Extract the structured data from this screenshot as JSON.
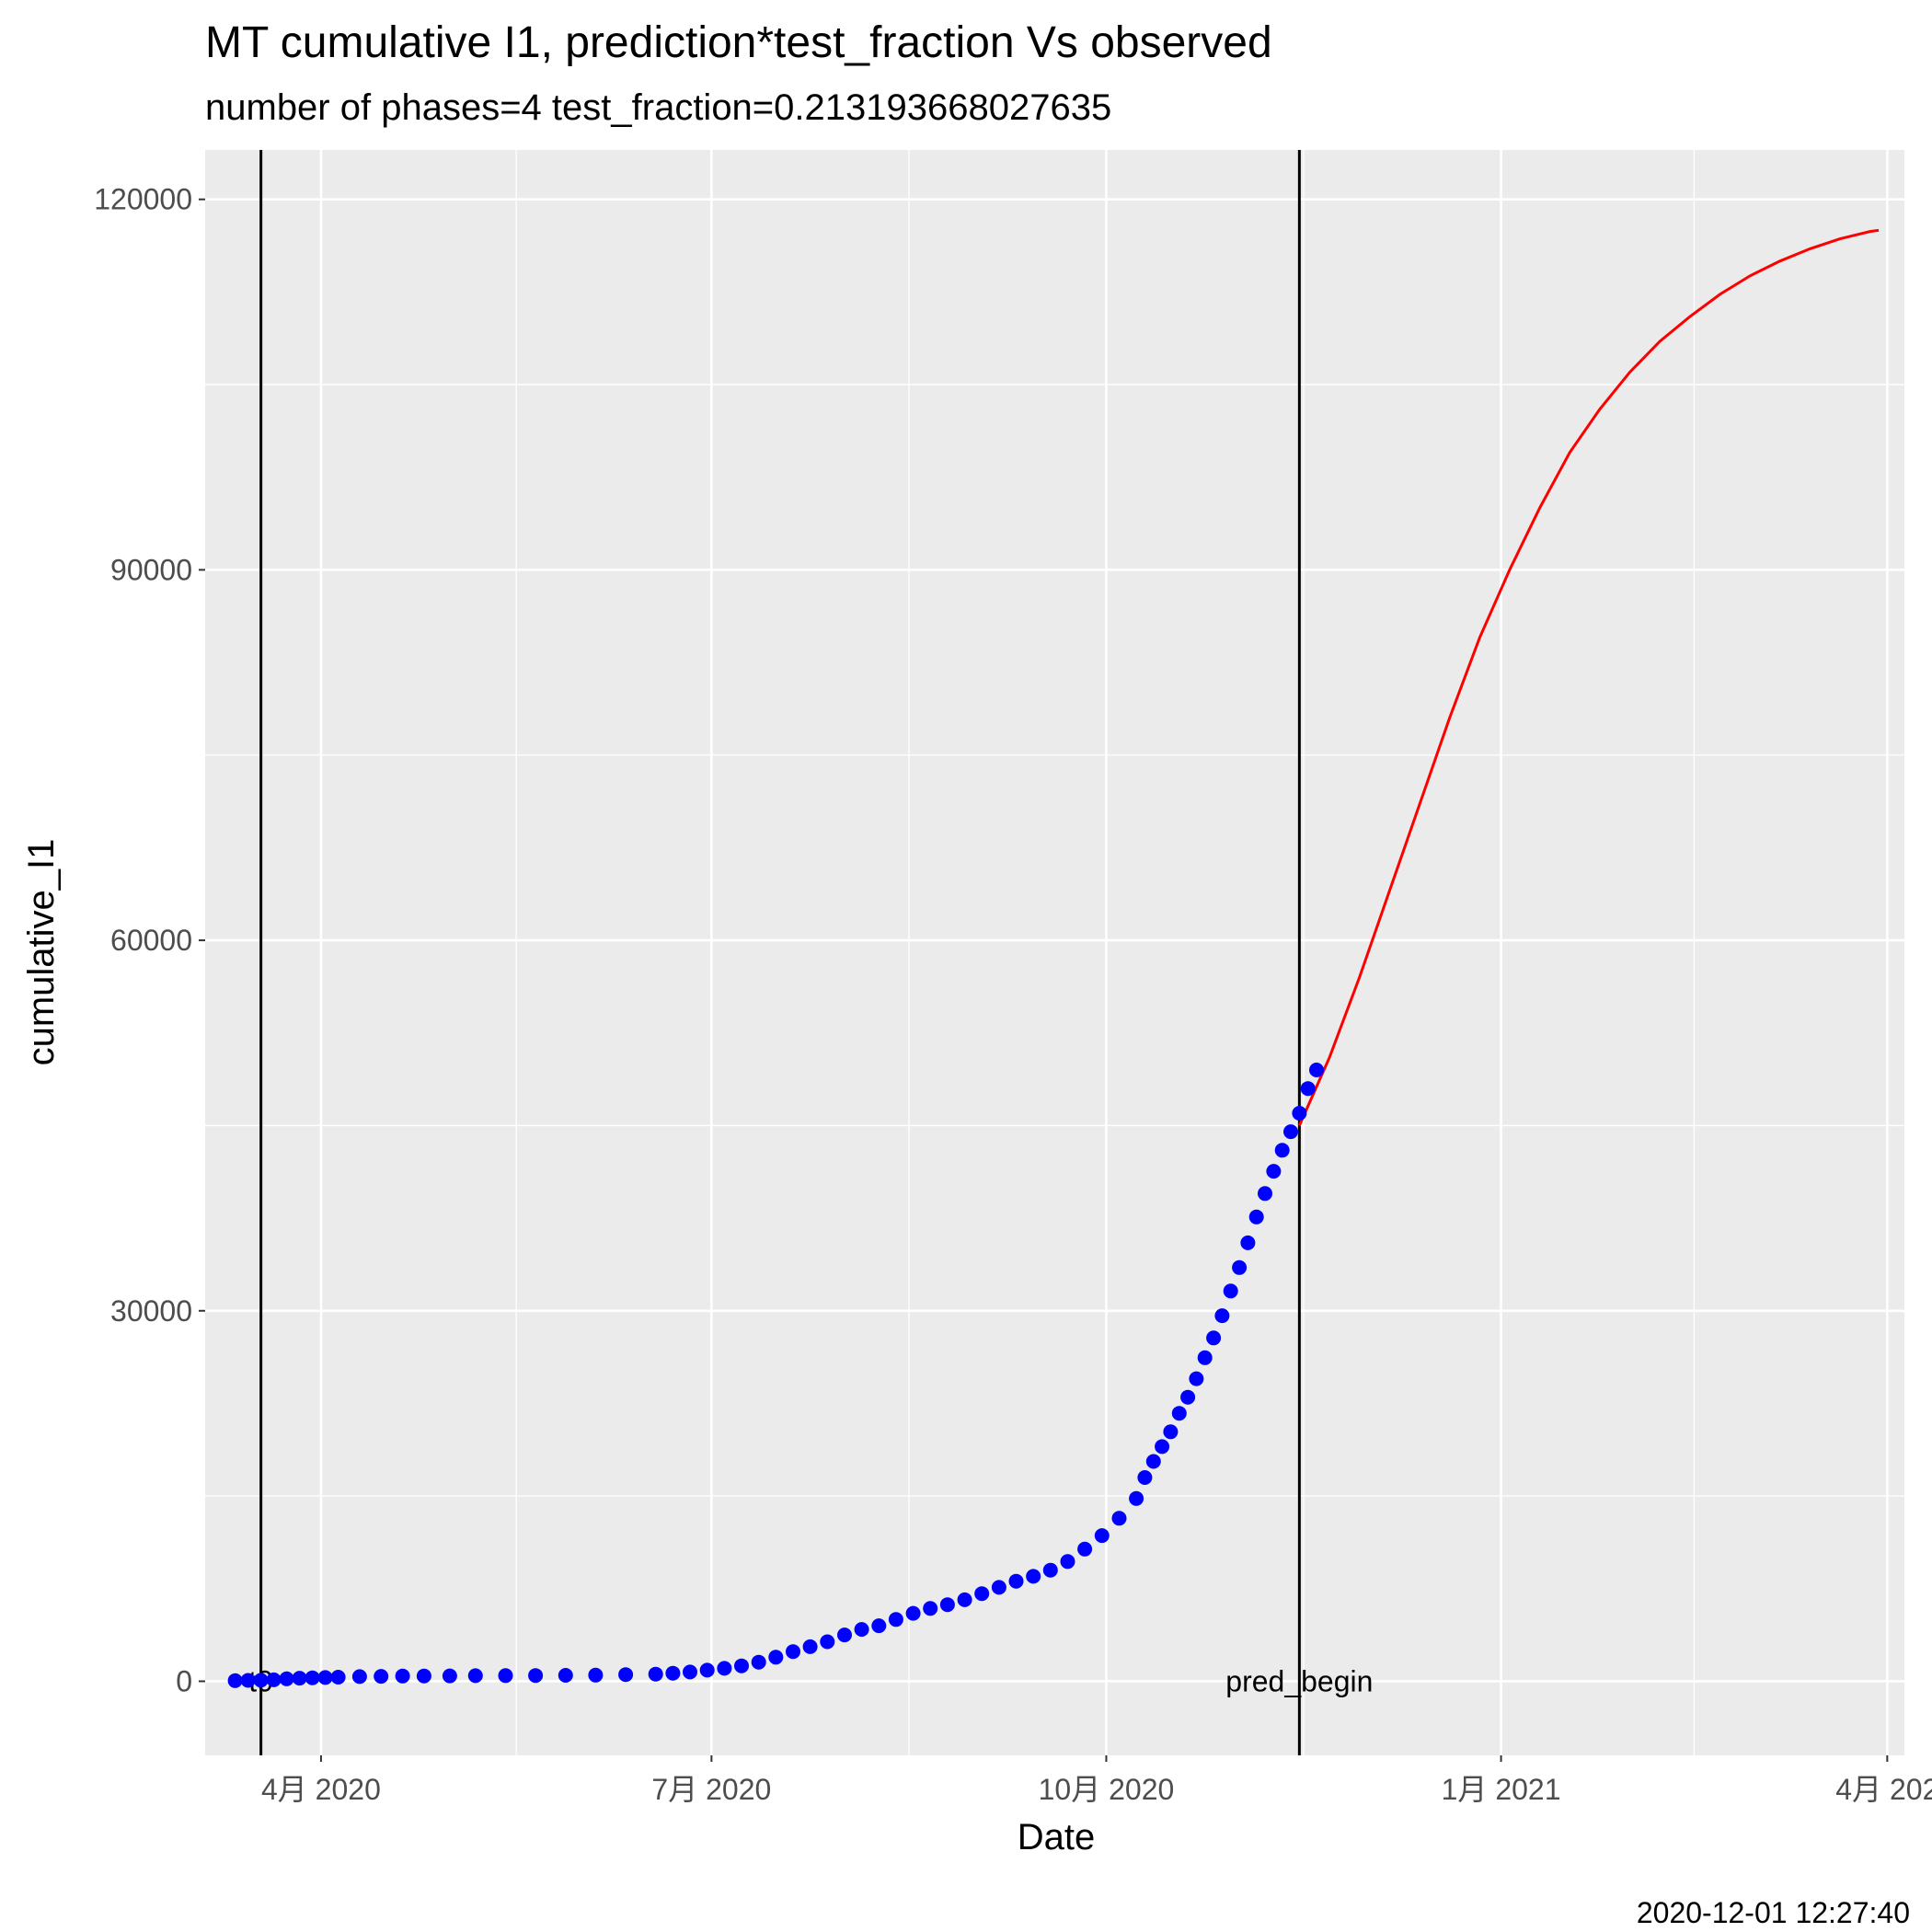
{
  "chart_data": {
    "type": "line",
    "title": "MT cumulative I1,  prediction*test_fraction Vs observed",
    "subtitle": "number of phases=4   test_fraction=0.213193668027635",
    "xlabel": "Date",
    "ylabel": "cumulative_I1",
    "caption": "2020-12-01 12:27:40",
    "xlim": [
      "2020-03-05",
      "2021-04-05"
    ],
    "ylim": [
      -6000,
      124000
    ],
    "y_ticks": [
      0,
      30000,
      60000,
      90000,
      120000
    ],
    "x_ticks": [
      {
        "date": "2020-04-01",
        "label": "4月 2020"
      },
      {
        "date": "2020-07-01",
        "label": "7月 2020"
      },
      {
        "date": "2020-10-01",
        "label": "10月 2020"
      },
      {
        "date": "2021-01-01",
        "label": "1月 2021"
      },
      {
        "date": "2021-04-01",
        "label": "4月 202"
      }
    ],
    "grid": true,
    "panel_background": "#ebebeb",
    "vlines": [
      {
        "date": "2020-03-18",
        "label": "t0"
      },
      {
        "date": "2020-11-15",
        "label": "pred_begin"
      }
    ],
    "series": [
      {
        "kind": "scatter",
        "color": "#0000ff",
        "points": [
          [
            "2020-03-12",
            50
          ],
          [
            "2020-03-15",
            70
          ],
          [
            "2020-03-18",
            80
          ],
          [
            "2020-03-21",
            120
          ],
          [
            "2020-03-24",
            200
          ],
          [
            "2020-03-27",
            250
          ],
          [
            "2020-03-30",
            280
          ],
          [
            "2020-04-02",
            300
          ],
          [
            "2020-04-05",
            330
          ],
          [
            "2020-04-10",
            380
          ],
          [
            "2020-04-15",
            400
          ],
          [
            "2020-04-20",
            420
          ],
          [
            "2020-04-25",
            430
          ],
          [
            "2020-05-01",
            440
          ],
          [
            "2020-05-07",
            450
          ],
          [
            "2020-05-14",
            460
          ],
          [
            "2020-05-21",
            470
          ],
          [
            "2020-05-28",
            480
          ],
          [
            "2020-06-04",
            500
          ],
          [
            "2020-06-11",
            540
          ],
          [
            "2020-06-18",
            580
          ],
          [
            "2020-06-22",
            650
          ],
          [
            "2020-06-26",
            750
          ],
          [
            "2020-06-30",
            900
          ],
          [
            "2020-07-04",
            1050
          ],
          [
            "2020-07-08",
            1250
          ],
          [
            "2020-07-12",
            1550
          ],
          [
            "2020-07-16",
            1950
          ],
          [
            "2020-07-20",
            2400
          ],
          [
            "2020-07-24",
            2800
          ],
          [
            "2020-07-28",
            3200
          ],
          [
            "2020-08-01",
            3750
          ],
          [
            "2020-08-05",
            4200
          ],
          [
            "2020-08-09",
            4500
          ],
          [
            "2020-08-13",
            5000
          ],
          [
            "2020-08-17",
            5500
          ],
          [
            "2020-08-21",
            5900
          ],
          [
            "2020-08-25",
            6200
          ],
          [
            "2020-08-29",
            6600
          ],
          [
            "2020-09-02",
            7100
          ],
          [
            "2020-09-06",
            7600
          ],
          [
            "2020-09-10",
            8100
          ],
          [
            "2020-09-14",
            8500
          ],
          [
            "2020-09-18",
            9000
          ],
          [
            "2020-09-22",
            9700
          ],
          [
            "2020-09-26",
            10700
          ],
          [
            "2020-09-30",
            11800
          ],
          [
            "2020-10-04",
            13200
          ],
          [
            "2020-10-08",
            14800
          ],
          [
            "2020-10-10",
            16500
          ],
          [
            "2020-10-12",
            17800
          ],
          [
            "2020-10-14",
            19000
          ],
          [
            "2020-10-16",
            20200
          ],
          [
            "2020-10-18",
            21700
          ],
          [
            "2020-10-20",
            23000
          ],
          [
            "2020-10-22",
            24500
          ],
          [
            "2020-10-24",
            26200
          ],
          [
            "2020-10-26",
            27800
          ],
          [
            "2020-10-28",
            29600
          ],
          [
            "2020-10-30",
            31600
          ],
          [
            "2020-11-01",
            33500
          ],
          [
            "2020-11-03",
            35500
          ],
          [
            "2020-11-05",
            37600
          ],
          [
            "2020-11-07",
            39500
          ],
          [
            "2020-11-09",
            41300
          ],
          [
            "2020-11-11",
            43000
          ],
          [
            "2020-11-13",
            44500
          ],
          [
            "2020-11-15",
            46000
          ],
          [
            "2020-11-17",
            48000
          ],
          [
            "2020-11-19",
            49500
          ]
        ]
      },
      {
        "kind": "line",
        "color": "#ff0000",
        "points": [
          [
            "2020-11-15",
            45000
          ],
          [
            "2020-11-22",
            50500
          ],
          [
            "2020-11-29",
            57000
          ],
          [
            "2020-12-06",
            64000
          ],
          [
            "2020-12-13",
            71000
          ],
          [
            "2020-12-20",
            78000
          ],
          [
            "2020-12-27",
            84500
          ],
          [
            "2021-01-03",
            90000
          ],
          [
            "2021-01-10",
            95000
          ],
          [
            "2021-01-17",
            99500
          ],
          [
            "2021-01-24",
            103000
          ],
          [
            "2021-01-31",
            106000
          ],
          [
            "2021-02-07",
            108500
          ],
          [
            "2021-02-14",
            110500
          ],
          [
            "2021-02-21",
            112300
          ],
          [
            "2021-02-28",
            113800
          ],
          [
            "2021-03-07",
            115000
          ],
          [
            "2021-03-14",
            116000
          ],
          [
            "2021-03-21",
            116800
          ],
          [
            "2021-03-28",
            117400
          ],
          [
            "2021-03-30",
            117500
          ]
        ]
      }
    ]
  }
}
